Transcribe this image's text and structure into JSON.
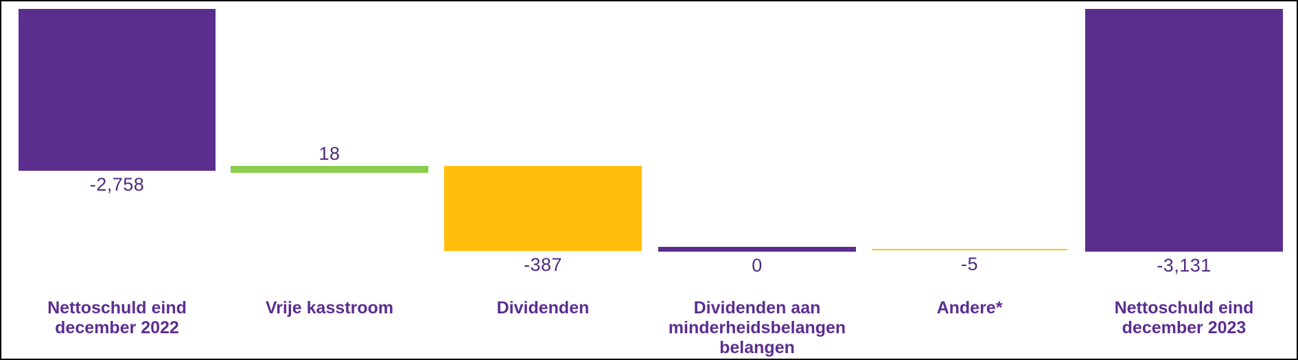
{
  "chart_data": {
    "type": "waterfall",
    "title": "",
    "orientation": "vertical",
    "grid": false,
    "legend": false,
    "axes_visible": false,
    "categories": [
      [
        "Nettoschuld eind",
        "december 2022"
      ],
      [
        "Vrije kasstroom"
      ],
      [
        "Dividenden"
      ],
      [
        "Dividenden aan",
        "minderheidsbelangen",
        "belangen"
      ],
      [
        "Andere*"
      ],
      [
        "Nettoschuld eind",
        "december 2023"
      ]
    ],
    "values": [
      -2758,
      18,
      -387,
      0,
      -5,
      -3131
    ],
    "value_labels": [
      "-2,758",
      "18",
      "-387",
      "0",
      "-5",
      "-3,131"
    ],
    "bar_colors": [
      "#5B2D8E",
      "#88CE4C",
      "#FFBE0B",
      "#5B2D8E",
      "#FFBE0B",
      "#5B2D8E"
    ],
    "category_label_color": "#5C2D91",
    "value_label_color": "#4F2B7F",
    "background_color": "#FFFFFF",
    "border_color": "#000000"
  }
}
